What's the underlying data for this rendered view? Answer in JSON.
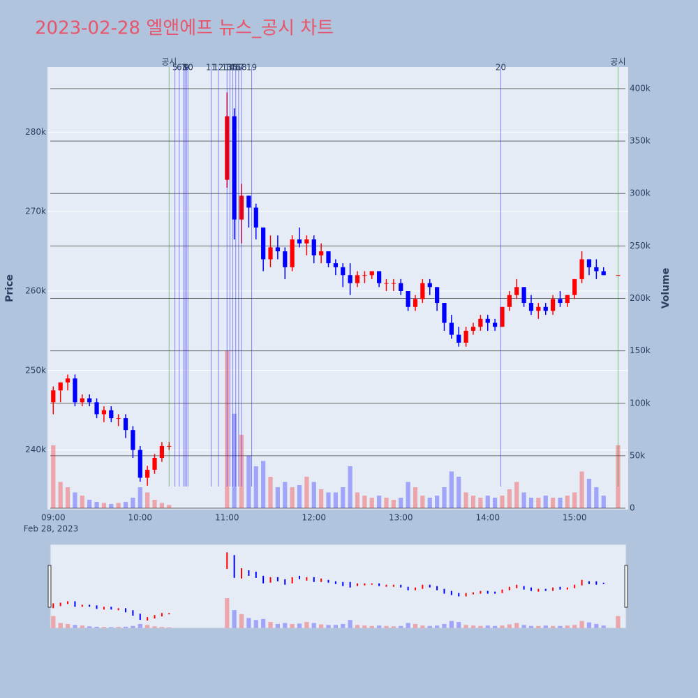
{
  "chart_data": {
    "type": "candlestick",
    "title": "2023-02-28 엘앤에프 뉴스_공시 차트",
    "y_title": "Price",
    "y2_title": "Volume",
    "x_date_label": "Feb 28, 2023",
    "up_color": "#ff0000",
    "down_color": "#0000ff",
    "x": [
      "2023-02-28 09:00",
      "2023-02-28 09:05",
      "2023-02-28 09:10",
      "2023-02-28 09:15",
      "2023-02-28 09:20",
      "2023-02-28 09:25",
      "2023-02-28 09:30",
      "2023-02-28 09:35",
      "2023-02-28 09:40",
      "2023-02-28 09:45",
      "2023-02-28 09:50",
      "2023-02-28 09:55",
      "2023-02-28 10:00",
      "2023-02-28 10:05",
      "2023-02-28 10:10",
      "2023-02-28 10:15",
      "2023-02-28 10:20",
      "2023-02-28 11:00",
      "2023-02-28 11:05",
      "2023-02-28 11:10",
      "2023-02-28 11:15",
      "2023-02-28 11:20",
      "2023-02-28 11:25",
      "2023-02-28 11:30",
      "2023-02-28 11:35",
      "2023-02-28 11:40",
      "2023-02-28 11:45",
      "2023-02-28 11:50",
      "2023-02-28 11:55",
      "2023-02-28 12:00",
      "2023-02-28 12:05",
      "2023-02-28 12:10",
      "2023-02-28 12:15",
      "2023-02-28 12:20",
      "2023-02-28 12:25",
      "2023-02-28 12:30",
      "2023-02-28 12:35",
      "2023-02-28 12:40",
      "2023-02-28 12:45",
      "2023-02-28 12:50",
      "2023-02-28 12:55",
      "2023-02-28 13:00",
      "2023-02-28 13:05",
      "2023-02-28 13:10",
      "2023-02-28 13:15",
      "2023-02-28 13:20",
      "2023-02-28 13:25",
      "2023-02-28 13:30",
      "2023-02-28 13:35",
      "2023-02-28 13:40",
      "2023-02-28 13:45",
      "2023-02-28 13:50",
      "2023-02-28 13:55",
      "2023-02-28 14:00",
      "2023-02-28 14:05",
      "2023-02-28 14:10",
      "2023-02-28 14:15",
      "2023-02-28 14:20",
      "2023-02-28 14:25",
      "2023-02-28 14:30",
      "2023-02-28 14:35",
      "2023-02-28 14:40",
      "2023-02-28 14:45",
      "2023-02-28 14:50",
      "2023-02-28 14:55",
      "2023-02-28 15:00",
      "2023-02-28 15:05",
      "2023-02-28 15:10",
      "2023-02-28 15:15",
      "2023-02-28 15:20",
      "2023-02-28 15:30"
    ],
    "open": [
      246000,
      247500,
      248500,
      249000,
      246000,
      246500,
      246000,
      244500,
      245000,
      244000,
      244000,
      242500,
      240000,
      236500,
      237500,
      239000,
      240500,
      274000,
      282000,
      269000,
      272000,
      270500,
      268000,
      264000,
      265500,
      265000,
      263000,
      266500,
      266000,
      266500,
      264500,
      265000,
      263500,
      263000,
      262000,
      261000,
      262000,
      262000,
      262500,
      261000,
      261000,
      261000,
      260000,
      258000,
      259000,
      261000,
      260500,
      258500,
      256000,
      254500,
      253500,
      255000,
      255500,
      256500,
      256000,
      255500,
      258000,
      259500,
      260500,
      258500,
      257500,
      258000,
      257500,
      259000,
      258500,
      259500,
      261500,
      264000,
      263000,
      262500,
      262000
    ],
    "high": [
      248000,
      248500,
      249500,
      249500,
      247000,
      247000,
      246500,
      245500,
      245500,
      244500,
      244500,
      243000,
      240500,
      238000,
      239500,
      241000,
      241000,
      285000,
      283000,
      273500,
      272000,
      271000,
      268000,
      267000,
      267000,
      265500,
      267000,
      268000,
      267000,
      267000,
      266000,
      265000,
      264000,
      263500,
      263500,
      262500,
      262500,
      262500,
      262500,
      261500,
      261500,
      261500,
      260000,
      259500,
      261500,
      261500,
      260500,
      258500,
      257000,
      255500,
      255500,
      256000,
      257000,
      257000,
      256500,
      258000,
      260000,
      261500,
      260500,
      259500,
      258500,
      258500,
      259500,
      260000,
      259500,
      261500,
      265000,
      264000,
      264000,
      263000,
      262000
    ],
    "low": [
      244500,
      246000,
      247500,
      245500,
      245500,
      245500,
      244000,
      243500,
      243500,
      243000,
      241500,
      239000,
      236000,
      235500,
      237000,
      238500,
      240000,
      273000,
      266500,
      266000,
      268000,
      266500,
      262500,
      263000,
      264000,
      261500,
      262500,
      265500,
      264500,
      263500,
      263500,
      263000,
      262000,
      260500,
      259500,
      260500,
      261000,
      261500,
      260500,
      260000,
      260000,
      259500,
      257500,
      257500,
      258500,
      259500,
      257500,
      255000,
      254000,
      253000,
      253000,
      254500,
      255000,
      255000,
      255000,
      255500,
      257500,
      259000,
      258000,
      257000,
      256500,
      257000,
      257000,
      258000,
      258000,
      259000,
      261000,
      262000,
      261500,
      262000,
      262000
    ],
    "close": [
      247500,
      248500,
      249000,
      246000,
      246500,
      246000,
      244500,
      245000,
      244000,
      244000,
      242500,
      240000,
      236500,
      237500,
      239000,
      240500,
      240500,
      282000,
      269000,
      272000,
      270500,
      268000,
      264000,
      265500,
      265000,
      263000,
      266500,
      266000,
      266500,
      264500,
      265000,
      263500,
      263000,
      262000,
      261000,
      262000,
      262000,
      262500,
      261000,
      261000,
      261000,
      260000,
      258000,
      259000,
      261000,
      260500,
      258500,
      256000,
      254500,
      253500,
      255000,
      255500,
      256500,
      256000,
      255500,
      258000,
      259500,
      260500,
      258500,
      257500,
      258000,
      257500,
      259000,
      258500,
      259500,
      261500,
      264000,
      263000,
      262500,
      262000,
      262000
    ],
    "volume": [
      60000,
      25000,
      20000,
      15000,
      12000,
      8000,
      6000,
      5000,
      4000,
      5000,
      6000,
      10000,
      20000,
      15000,
      8000,
      5000,
      3000,
      150000,
      90000,
      70000,
      50000,
      40000,
      45000,
      30000,
      20000,
      25000,
      20000,
      22000,
      30000,
      25000,
      18000,
      15000,
      15000,
      20000,
      40000,
      15000,
      12000,
      10000,
      12000,
      10000,
      8000,
      10000,
      25000,
      20000,
      12000,
      10000,
      12000,
      20000,
      35000,
      30000,
      15000,
      12000,
      10000,
      12000,
      10000,
      12000,
      18000,
      25000,
      15000,
      10000,
      10000,
      12000,
      10000,
      10000,
      12000,
      15000,
      35000,
      28000,
      20000,
      12000,
      60000
    ],
    "xlim": [
      "2023-02-28 08:56",
      "2023-02-28 15:37"
    ],
    "xticks": [
      {
        "value": "2023-02-28 09:00",
        "label": "09:00"
      },
      {
        "value": "2023-02-28 10:00",
        "label": "10:00"
      },
      {
        "value": "2023-02-28 11:00",
        "label": "11:00"
      },
      {
        "value": "2023-02-28 12:00",
        "label": "12:00"
      },
      {
        "value": "2023-02-28 13:00",
        "label": "13:00"
      },
      {
        "value": "2023-02-28 14:00",
        "label": "14:00"
      },
      {
        "value": "2023-02-28 15:00",
        "label": "15:00"
      }
    ],
    "ylim": [
      232500,
      288200
    ],
    "yticks": [
      {
        "value": 240000,
        "label": "240k"
      },
      {
        "value": 250000,
        "label": "250k"
      },
      {
        "value": 260000,
        "label": "260k"
      },
      {
        "value": 270000,
        "label": "270k"
      },
      {
        "value": 280000,
        "label": "280k"
      }
    ],
    "y2lim": [
      -1300,
      420600
    ],
    "y2ticks": [
      0,
      {
        "value": 50000,
        "label": "50k"
      },
      {
        "value": 100000,
        "label": "100k"
      },
      {
        "value": 150000,
        "label": "150k"
      },
      {
        "value": 200000,
        "label": "200k"
      },
      {
        "value": 250000,
        "label": "250k"
      },
      {
        "value": 300000,
        "label": "300k"
      },
      {
        "value": 350000,
        "label": "350k"
      },
      {
        "value": 400000,
        "label": "400k"
      }
    ],
    "annotations": [
      {
        "x": "2023-02-28 10:20",
        "label": "공시",
        "color": "green"
      },
      {
        "x": "2023-02-28 10:24",
        "label": "5",
        "color": "blue"
      },
      {
        "x": "2023-02-28 10:27",
        "label": "6",
        "color": "blue"
      },
      {
        "x": "2023-02-28 10:30",
        "label": "7",
        "color": "blue"
      },
      {
        "x": "2023-02-28 10:31",
        "label": "8",
        "color": "blue"
      },
      {
        "x": "2023-02-28 10:32",
        "label": "9",
        "color": "blue"
      },
      {
        "x": "2023-02-28 10:33",
        "label": "10",
        "color": "blue"
      },
      {
        "x": "2023-02-28 10:49",
        "label": "11",
        "color": "blue"
      },
      {
        "x": "2023-02-28 10:54",
        "label": "12",
        "color": "blue"
      },
      {
        "x": "2023-02-28 11:00",
        "label": "13",
        "color": "blue"
      },
      {
        "x": "2023-02-28 11:02",
        "label": "14",
        "color": "blue"
      },
      {
        "x": "2023-02-28 11:04",
        "label": "15",
        "color": "blue"
      },
      {
        "x": "2023-02-28 11:06",
        "label": "16",
        "color": "blue"
      },
      {
        "x": "2023-02-28 11:08",
        "label": "17",
        "color": "blue"
      },
      {
        "x": "2023-02-28 11:10",
        "label": "18",
        "color": "blue"
      },
      {
        "x": "2023-02-28 11:17",
        "label": "19",
        "color": "blue"
      },
      {
        "x": "2023-02-28 14:09",
        "label": "20",
        "color": "blue"
      },
      {
        "x": "2023-02-28 15:30",
        "label": "공시",
        "color": "green"
      }
    ]
  }
}
